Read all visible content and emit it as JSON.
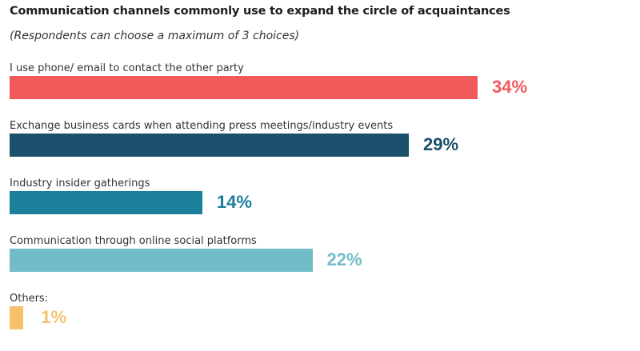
{
  "chart_data": {
    "type": "bar",
    "orientation": "horizontal",
    "title": "Communication channels commonly use to expand the circle of acquaintances",
    "subtitle": "(Respondents can choose a maximum of 3 choices)",
    "categories": [
      "I use phone/ email to contact the other party",
      "Exchange business cards when attending press meetings/industry events",
      "Industry insider gatherings",
      "Communication through online social platforms",
      "Others:"
    ],
    "values": [
      34,
      29,
      14,
      22,
      1
    ],
    "value_labels": [
      "34%",
      "29%",
      "14%",
      "22%",
      "1%"
    ],
    "colors": [
      "#f05a5b",
      "#1b4f6b",
      "#1a7f9b",
      "#72bcc8",
      "#f5c16c"
    ],
    "xlim": [
      0,
      34
    ],
    "grid": false,
    "legend": "none"
  }
}
